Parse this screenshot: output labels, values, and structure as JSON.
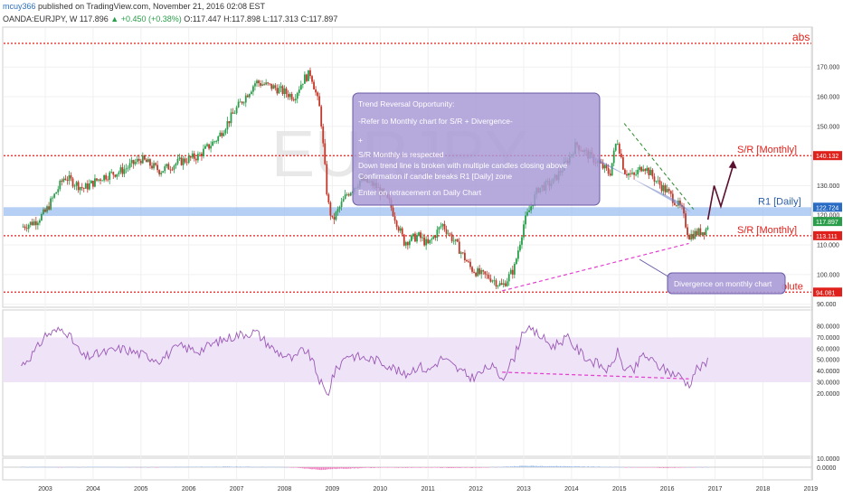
{
  "header": {
    "user": "mcuy366",
    "published_text": "published on TradingView.com, November 21, 2016 02:08 EST",
    "symbol": "OANDA:EURJPY, W",
    "last": "117.896",
    "change": "+0.450 (+0.38%)",
    "open": "O:117.447",
    "high": "H:117.898",
    "low": "L:117.313",
    "close": "C:117.897"
  },
  "watermark": "EURJPY",
  "colors": {
    "up": "#2a9d4a",
    "down": "#c0392b",
    "sr_line": "#e0201b",
    "zone": "#9dbff0",
    "rsi": "#9b59b6",
    "rsi_band": "#eee3f7",
    "divergence": "#e33fd0",
    "trend": "#6b7fc4",
    "arrow": "#5b1030",
    "annotation_fill": "#a99ad6"
  },
  "chart_data": [
    {
      "type": "candlestick",
      "x_labels": [
        "2003",
        "2004",
        "2005",
        "2006",
        "2007",
        "2008",
        "2009",
        "2010",
        "2011",
        "2012",
        "2013",
        "2014",
        "2015",
        "2016",
        "2017",
        "2018",
        "2019",
        "Nov"
      ],
      "y_ticks": [
        "170.000",
        "160.000",
        "150.000",
        "140.000",
        "130.000",
        "120.000",
        "110.000",
        "100.000",
        "90.000"
      ],
      "price_badges": [
        {
          "value": "140.132",
          "color": "#e0201b"
        },
        {
          "value": "122.724",
          "color": "#2a6cc4"
        },
        {
          "value": "117.897",
          "color": "#2a9d4a"
        },
        {
          "value": "113.111",
          "color": "#e0201b"
        },
        {
          "value": "94.081",
          "color": "#e0201b"
        }
      ],
      "levels": [
        {
          "label": "abs",
          "value": 178
        },
        {
          "label": "S/R [Monthly]",
          "value": 140.13
        },
        {
          "label": "S/R [Monthly]",
          "value": 113.11
        },
        {
          "label": "olute",
          "value": 94.08
        }
      ],
      "zone": {
        "label": "R1 [Daily]",
        "from": 119.8,
        "to": 122.72
      },
      "series": [
        {
          "x": 2002.5,
          "y": 116
        },
        {
          "x": 2002.8,
          "y": 118
        },
        {
          "x": 2003.0,
          "y": 121
        },
        {
          "x": 2003.4,
          "y": 133
        },
        {
          "x": 2003.8,
          "y": 129
        },
        {
          "x": 2004.2,
          "y": 133
        },
        {
          "x": 2004.6,
          "y": 135
        },
        {
          "x": 2005.0,
          "y": 139
        },
        {
          "x": 2005.4,
          "y": 135
        },
        {
          "x": 2005.8,
          "y": 138
        },
        {
          "x": 2006.2,
          "y": 140
        },
        {
          "x": 2006.6,
          "y": 146
        },
        {
          "x": 2007.0,
          "y": 156
        },
        {
          "x": 2007.4,
          "y": 165
        },
        {
          "x": 2007.8,
          "y": 163
        },
        {
          "x": 2008.2,
          "y": 160
        },
        {
          "x": 2008.4,
          "y": 166
        },
        {
          "x": 2008.55,
          "y": 168
        },
        {
          "x": 2008.75,
          "y": 155
        },
        {
          "x": 2008.9,
          "y": 125
        },
        {
          "x": 2009.0,
          "y": 118
        },
        {
          "x": 2009.3,
          "y": 127
        },
        {
          "x": 2009.6,
          "y": 132
        },
        {
          "x": 2009.9,
          "y": 130
        },
        {
          "x": 2010.2,
          "y": 124
        },
        {
          "x": 2010.5,
          "y": 111
        },
        {
          "x": 2010.8,
          "y": 113
        },
        {
          "x": 2011.0,
          "y": 110
        },
        {
          "x": 2011.3,
          "y": 117
        },
        {
          "x": 2011.6,
          "y": 110
        },
        {
          "x": 2011.9,
          "y": 102
        },
        {
          "x": 2012.1,
          "y": 100
        },
        {
          "x": 2012.3,
          "y": 99
        },
        {
          "x": 2012.55,
          "y": 96
        },
        {
          "x": 2012.8,
          "y": 102
        },
        {
          "x": 2013.0,
          "y": 117
        },
        {
          "x": 2013.3,
          "y": 129
        },
        {
          "x": 2013.6,
          "y": 131
        },
        {
          "x": 2013.9,
          "y": 138
        },
        {
          "x": 2014.1,
          "y": 144
        },
        {
          "x": 2014.3,
          "y": 141
        },
        {
          "x": 2014.6,
          "y": 137
        },
        {
          "x": 2014.8,
          "y": 134
        },
        {
          "x": 2014.95,
          "y": 146
        },
        {
          "x": 2015.1,
          "y": 135
        },
        {
          "x": 2015.3,
          "y": 133
        },
        {
          "x": 2015.5,
          "y": 137
        },
        {
          "x": 2015.8,
          "y": 131
        },
        {
          "x": 2016.0,
          "y": 128
        },
        {
          "x": 2016.3,
          "y": 122
        },
        {
          "x": 2016.45,
          "y": 113
        },
        {
          "x": 2016.6,
          "y": 114
        },
        {
          "x": 2016.8,
          "y": 115
        },
        {
          "x": 2016.88,
          "y": 117.9
        }
      ]
    },
    {
      "type": "line",
      "y_ticks": [
        "80.0000",
        "70.0000",
        "60.0000",
        "50.0000",
        "40.0000",
        "30.0000",
        "20.0000"
      ],
      "band": [
        30,
        70
      ],
      "series": [
        {
          "x": 2002.5,
          "y": 45
        },
        {
          "x": 2002.8,
          "y": 58
        },
        {
          "x": 2003.0,
          "y": 72
        },
        {
          "x": 2003.4,
          "y": 78
        },
        {
          "x": 2003.8,
          "y": 52
        },
        {
          "x": 2004.2,
          "y": 56
        },
        {
          "x": 2004.6,
          "y": 60
        },
        {
          "x": 2005.0,
          "y": 55
        },
        {
          "x": 2005.4,
          "y": 50
        },
        {
          "x": 2005.8,
          "y": 62
        },
        {
          "x": 2006.2,
          "y": 58
        },
        {
          "x": 2006.6,
          "y": 66
        },
        {
          "x": 2007.0,
          "y": 72
        },
        {
          "x": 2007.4,
          "y": 75
        },
        {
          "x": 2007.8,
          "y": 58
        },
        {
          "x": 2008.2,
          "y": 50
        },
        {
          "x": 2008.4,
          "y": 60
        },
        {
          "x": 2008.55,
          "y": 52
        },
        {
          "x": 2008.75,
          "y": 30
        },
        {
          "x": 2008.9,
          "y": 17
        },
        {
          "x": 2009.0,
          "y": 35
        },
        {
          "x": 2009.3,
          "y": 55
        },
        {
          "x": 2009.6,
          "y": 52
        },
        {
          "x": 2009.9,
          "y": 50
        },
        {
          "x": 2010.2,
          "y": 45
        },
        {
          "x": 2010.5,
          "y": 36
        },
        {
          "x": 2010.8,
          "y": 45
        },
        {
          "x": 2011.0,
          "y": 40
        },
        {
          "x": 2011.3,
          "y": 52
        },
        {
          "x": 2011.6,
          "y": 42
        },
        {
          "x": 2011.9,
          "y": 34
        },
        {
          "x": 2012.1,
          "y": 38
        },
        {
          "x": 2012.3,
          "y": 45
        },
        {
          "x": 2012.55,
          "y": 34
        },
        {
          "x": 2012.8,
          "y": 52
        },
        {
          "x": 2013.0,
          "y": 78
        },
        {
          "x": 2013.3,
          "y": 73
        },
        {
          "x": 2013.6,
          "y": 62
        },
        {
          "x": 2013.9,
          "y": 70
        },
        {
          "x": 2014.1,
          "y": 60
        },
        {
          "x": 2014.3,
          "y": 52
        },
        {
          "x": 2014.6,
          "y": 45
        },
        {
          "x": 2014.8,
          "y": 40
        },
        {
          "x": 2014.95,
          "y": 58
        },
        {
          "x": 2015.1,
          "y": 42
        },
        {
          "x": 2015.3,
          "y": 40
        },
        {
          "x": 2015.5,
          "y": 55
        },
        {
          "x": 2015.8,
          "y": 45
        },
        {
          "x": 2016.0,
          "y": 40
        },
        {
          "x": 2016.3,
          "y": 35
        },
        {
          "x": 2016.45,
          "y": 27
        },
        {
          "x": 2016.6,
          "y": 42
        },
        {
          "x": 2016.8,
          "y": 45
        },
        {
          "x": 2016.88,
          "y": 53
        }
      ]
    },
    {
      "type": "bar",
      "y_ticks": [
        "10.0000",
        "0.0000"
      ],
      "series": [
        {
          "x": 2003,
          "y": 0.2
        },
        {
          "x": 2004,
          "y": 0.3
        },
        {
          "x": 2005,
          "y": 0.1
        },
        {
          "x": 2006,
          "y": 0.4
        },
        {
          "x": 2007,
          "y": 0.6
        },
        {
          "x": 2008,
          "y": 0.2
        },
        {
          "x": 2008.8,
          "y": -3
        },
        {
          "x": 2009,
          "y": -2
        },
        {
          "x": 2010,
          "y": -0.5
        },
        {
          "x": 2011,
          "y": -0.6
        },
        {
          "x": 2012,
          "y": -0.8
        },
        {
          "x": 2013,
          "y": 1.5
        },
        {
          "x": 2014,
          "y": 1
        },
        {
          "x": 2015,
          "y": 0.2
        },
        {
          "x": 2016,
          "y": -0.8
        },
        {
          "x": 2016.8,
          "y": 0.3
        }
      ]
    }
  ],
  "annotations": {
    "box_lines": [
      "Trend Reversal Opportunity:",
      "-Refer to Monthly chart for S/R + Divergence-",
      "+",
      "S/R Monthly is respected",
      "Down trend line is broken with multiple candles closing above",
      "Confirmation if candle breaks R1 [Daily] zone",
      "Enter on retracement on Daily Chart"
    ],
    "divergence_label": "Divergence on monthly chart"
  }
}
